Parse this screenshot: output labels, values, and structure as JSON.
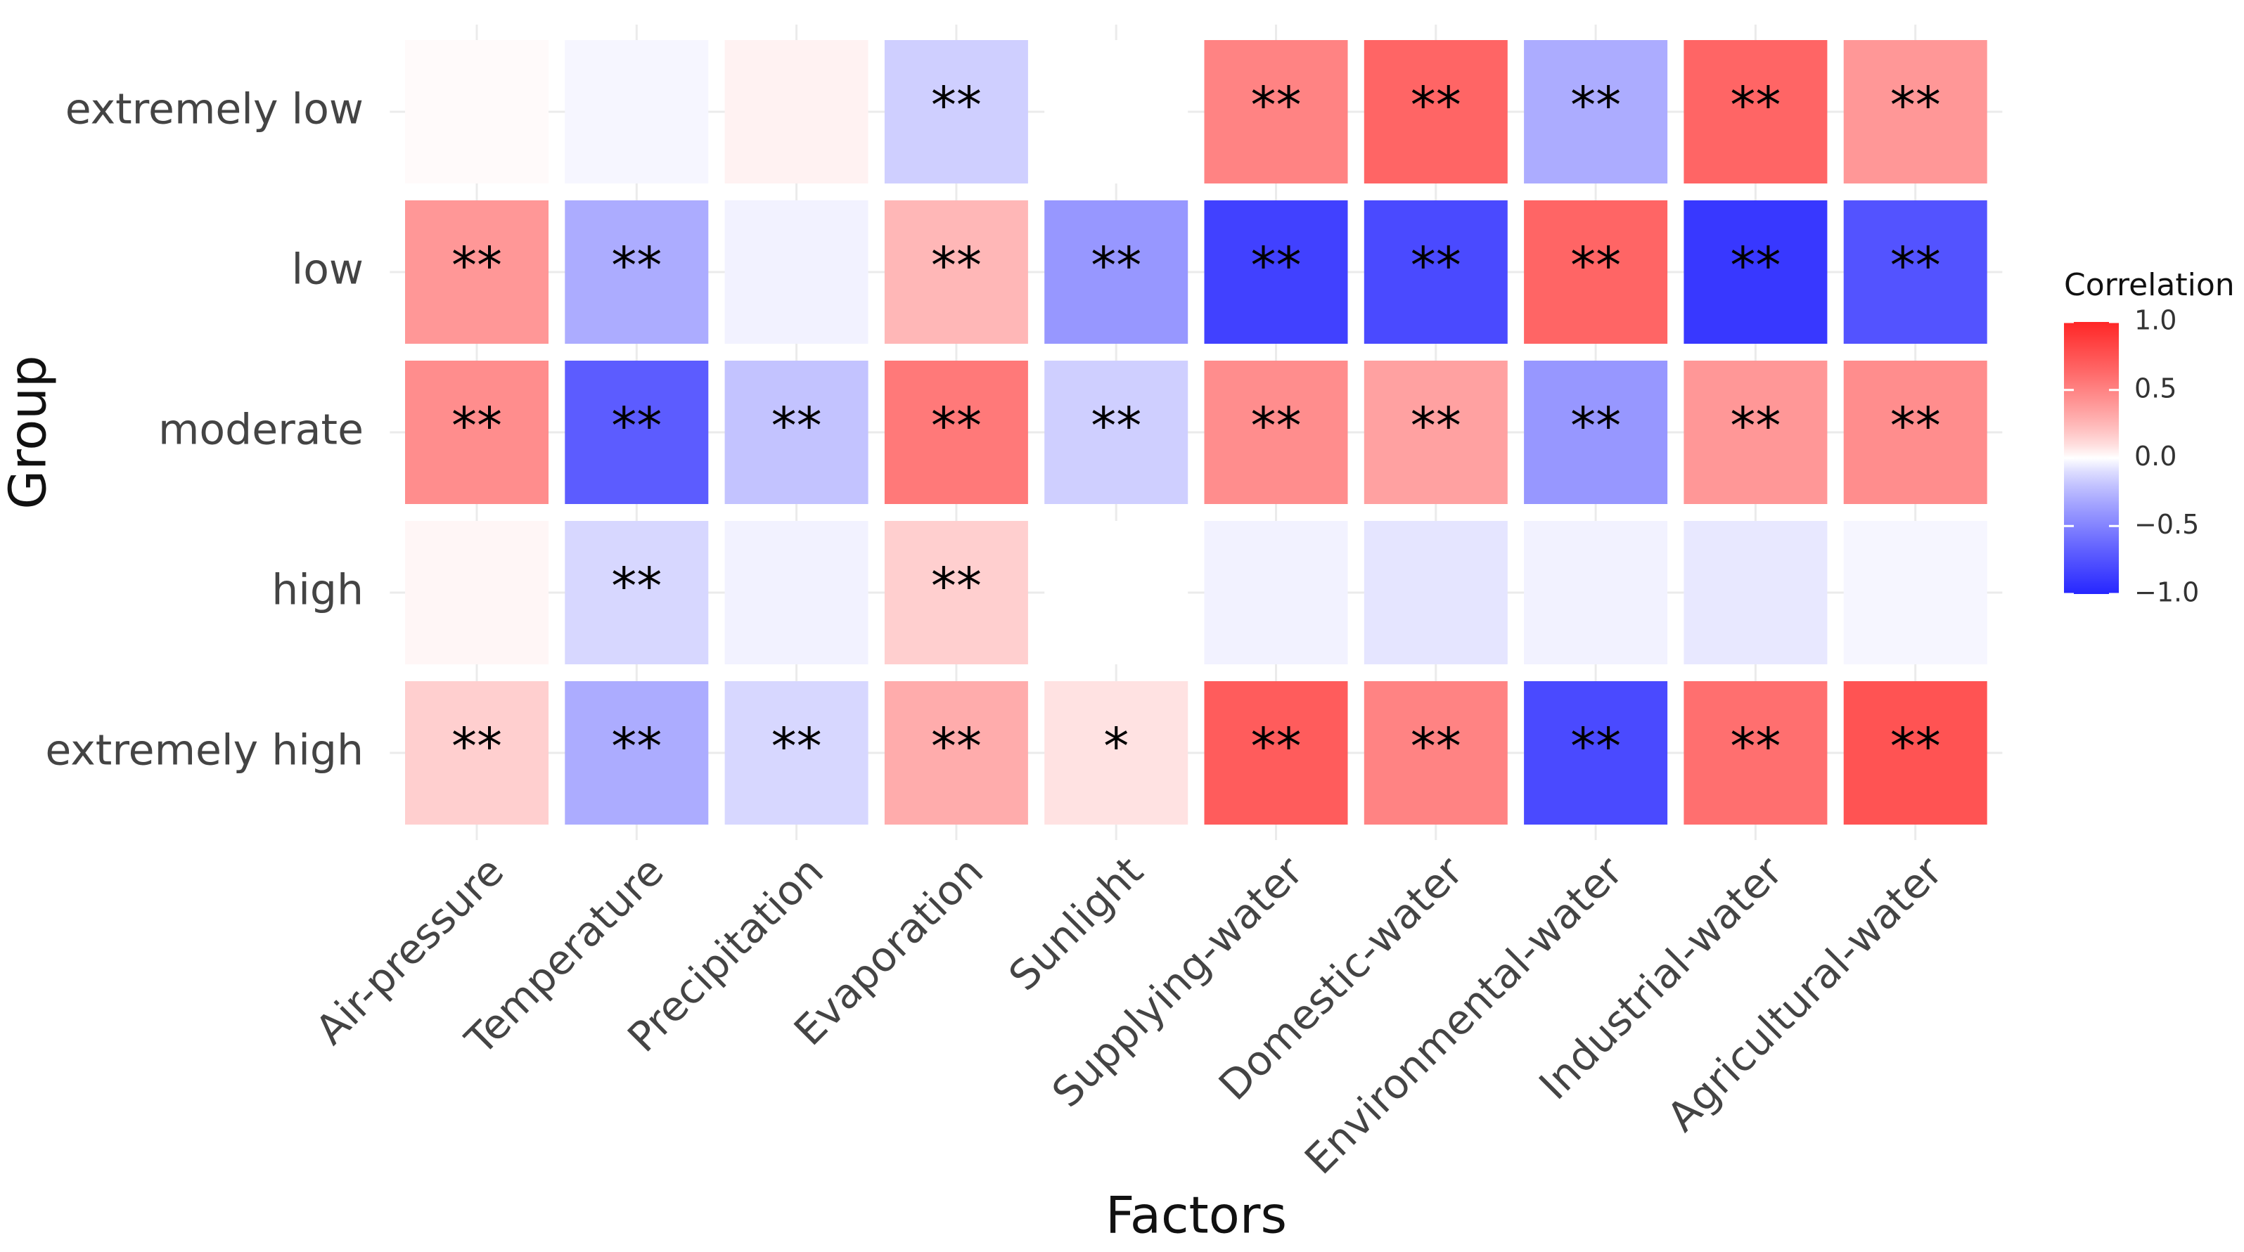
{
  "chart_data": {
    "type": "heatmap",
    "x_label": "Factors",
    "y_label": "Group",
    "legend_title": "Correlation",
    "categories": [
      "Air-pressure",
      "Temperature",
      "Precipitation",
      "Evaporation",
      "Sunlight",
      "Supplying-water",
      "Domestic-water",
      "Environmental-water",
      "Industrial-water",
      "Agricultural-water"
    ],
    "rows": [
      "extremely low",
      "low",
      "moderate",
      "high",
      "extremely high"
    ],
    "values": [
      [
        0.01,
        -0.02,
        0.03,
        -0.15,
        0.0,
        0.5,
        0.65,
        -0.3,
        0.65,
        0.4
      ],
      [
        0.4,
        -0.3,
        -0.03,
        0.25,
        -0.4,
        -0.85,
        -0.8,
        0.65,
        -0.9,
        -0.75
      ],
      [
        0.45,
        -0.7,
        -0.2,
        0.55,
        -0.15,
        0.45,
        0.35,
        -0.4,
        0.4,
        0.45
      ],
      [
        0.02,
        -0.12,
        -0.03,
        0.15,
        0.0,
        -0.03,
        -0.07,
        -0.03,
        -0.06,
        -0.02
      ],
      [
        0.15,
        -0.3,
        -0.12,
        0.3,
        0.08,
        0.7,
        0.5,
        -0.8,
        0.6,
        0.75
      ]
    ],
    "significance": [
      [
        null,
        null,
        null,
        "**",
        null,
        "**",
        "**",
        "**",
        "**",
        "**"
      ],
      [
        "**",
        "**",
        null,
        "**",
        "**",
        "**",
        "**",
        "**",
        "**",
        "**"
      ],
      [
        "**",
        "**",
        "**",
        "**",
        "**",
        "**",
        "**",
        "**",
        "**",
        "**"
      ],
      [
        null,
        "**",
        null,
        "**",
        null,
        null,
        null,
        null,
        null,
        null
      ],
      [
        "**",
        "**",
        "**",
        "**",
        "*",
        "**",
        "**",
        "**",
        "**",
        "**"
      ]
    ],
    "zlim": [
      -1,
      1
    ],
    "zticks": [
      {
        "value": 1,
        "label": "1.0"
      },
      0.5,
      {
        "value": 0,
        "label": "0.0"
      },
      {
        "value": -0.5,
        "label": "−0.5"
      },
      {
        "value": -1,
        "label": "−1.0"
      }
    ],
    "color_low": "#0000ff",
    "color_mid": "#ffffff",
    "color_high": "#ff0000",
    "grid": true
  }
}
